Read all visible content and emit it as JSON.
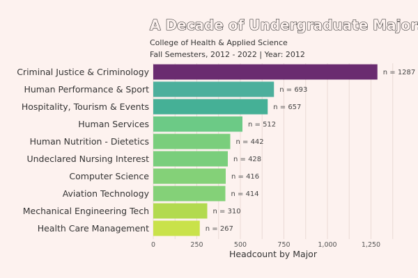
{
  "chart_data": {
    "type": "bar",
    "orientation": "horizontal",
    "title": "A Decade of Undergraduate Majors",
    "subtitle_lines": [
      "College of Health & Applied Science",
      "Fall Semesters, 2012 - 2022 | Year: 2012"
    ],
    "xlabel": "Headcount by Major",
    "ylabel": "",
    "xlim": [
      0,
      1400
    ],
    "xticks": [
      0,
      250,
      500,
      750,
      1000,
      1250
    ],
    "xtick_labels": [
      "0",
      "250",
      "500",
      "750",
      "1,000",
      "1,250"
    ],
    "grid": true,
    "value_label_prefix": "n = ",
    "categories": [
      "Criminal Justice & Criminology",
      "Human Performance & Sport",
      "Hospitality, Tourism & Events",
      "Human Services",
      "Human Nutrition - Dietetics",
      "Undeclared Nursing Interest",
      "Computer Science",
      "Aviation Technology",
      "Mechanical Engineering Tech",
      "Health Care Management"
    ],
    "values": [
      1287,
      693,
      657,
      512,
      442,
      428,
      416,
      414,
      310,
      267
    ],
    "colors": [
      "#6a2c70",
      "#4caf9c",
      "#45b096",
      "#6cca86",
      "#7ace7c",
      "#7ace7c",
      "#84d178",
      "#84d178",
      "#b2da4f",
      "#c9e24a"
    ]
  }
}
